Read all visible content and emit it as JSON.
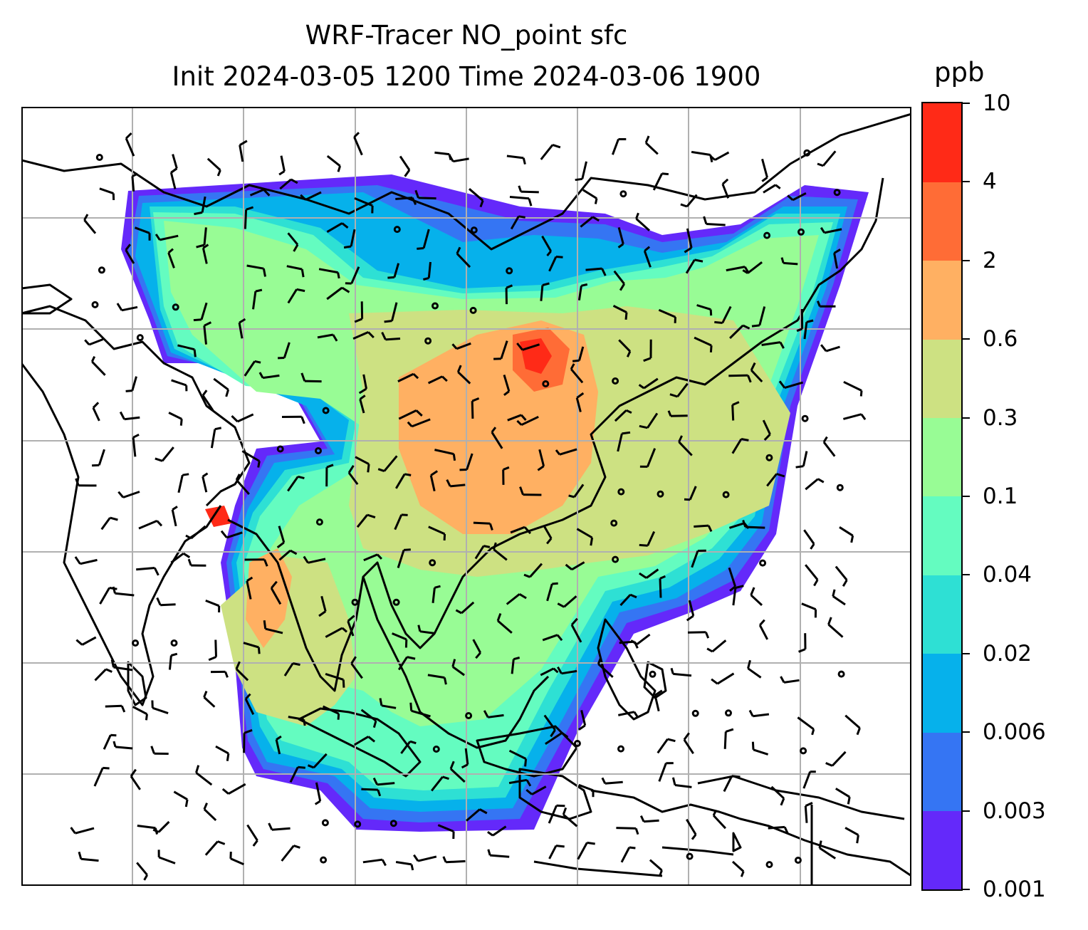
{
  "title": {
    "line1": "WRF-Tracer NO_point sfc",
    "line2": "Init 2024-03-05 1200 Time 2024-03-06 1900"
  },
  "colorbar": {
    "unit": "ppb",
    "levels": [
      "0.001",
      "0.003",
      "0.006",
      "0.02",
      "0.04",
      "0.1",
      "0.3",
      "0.6",
      "2",
      "4",
      "10"
    ],
    "colors": [
      "#6429fa",
      "#3575f3",
      "#06b1eb",
      "#2ee0d4",
      "#64fcc0",
      "#98fc95",
      "#cde182",
      "#ffb062",
      "#ff6c36",
      "#ff2a17"
    ]
  },
  "map": {
    "wind_barbs": "present",
    "coastlines": "present",
    "gridlines": true
  }
}
